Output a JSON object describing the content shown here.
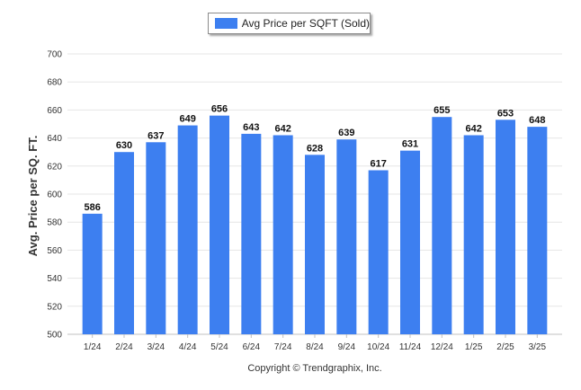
{
  "chart_data": {
    "type": "bar",
    "categories": [
      "1/24",
      "2/24",
      "3/24",
      "4/24",
      "5/24",
      "6/24",
      "7/24",
      "8/24",
      "9/24",
      "10/24",
      "11/24",
      "12/24",
      "1/25",
      "2/25",
      "3/25"
    ],
    "series": [
      {
        "name": "Avg Price per SQFT (Sold)",
        "values": [
          586,
          630,
          637,
          649,
          656,
          643,
          642,
          628,
          639,
          617,
          631,
          655,
          642,
          653,
          648
        ]
      }
    ],
    "ylabel": "Avg. Price per SQ. FT.",
    "xlabel": "",
    "ylim": [
      500,
      700
    ],
    "yticks": [
      500,
      520,
      540,
      560,
      580,
      600,
      620,
      640,
      660,
      680,
      700
    ],
    "grid": true,
    "legend": "top-center",
    "bar_color": "#3d7ff0",
    "data_labels": true
  },
  "footer": {
    "copyright": "Copyright © Trendgraphix, Inc."
  }
}
